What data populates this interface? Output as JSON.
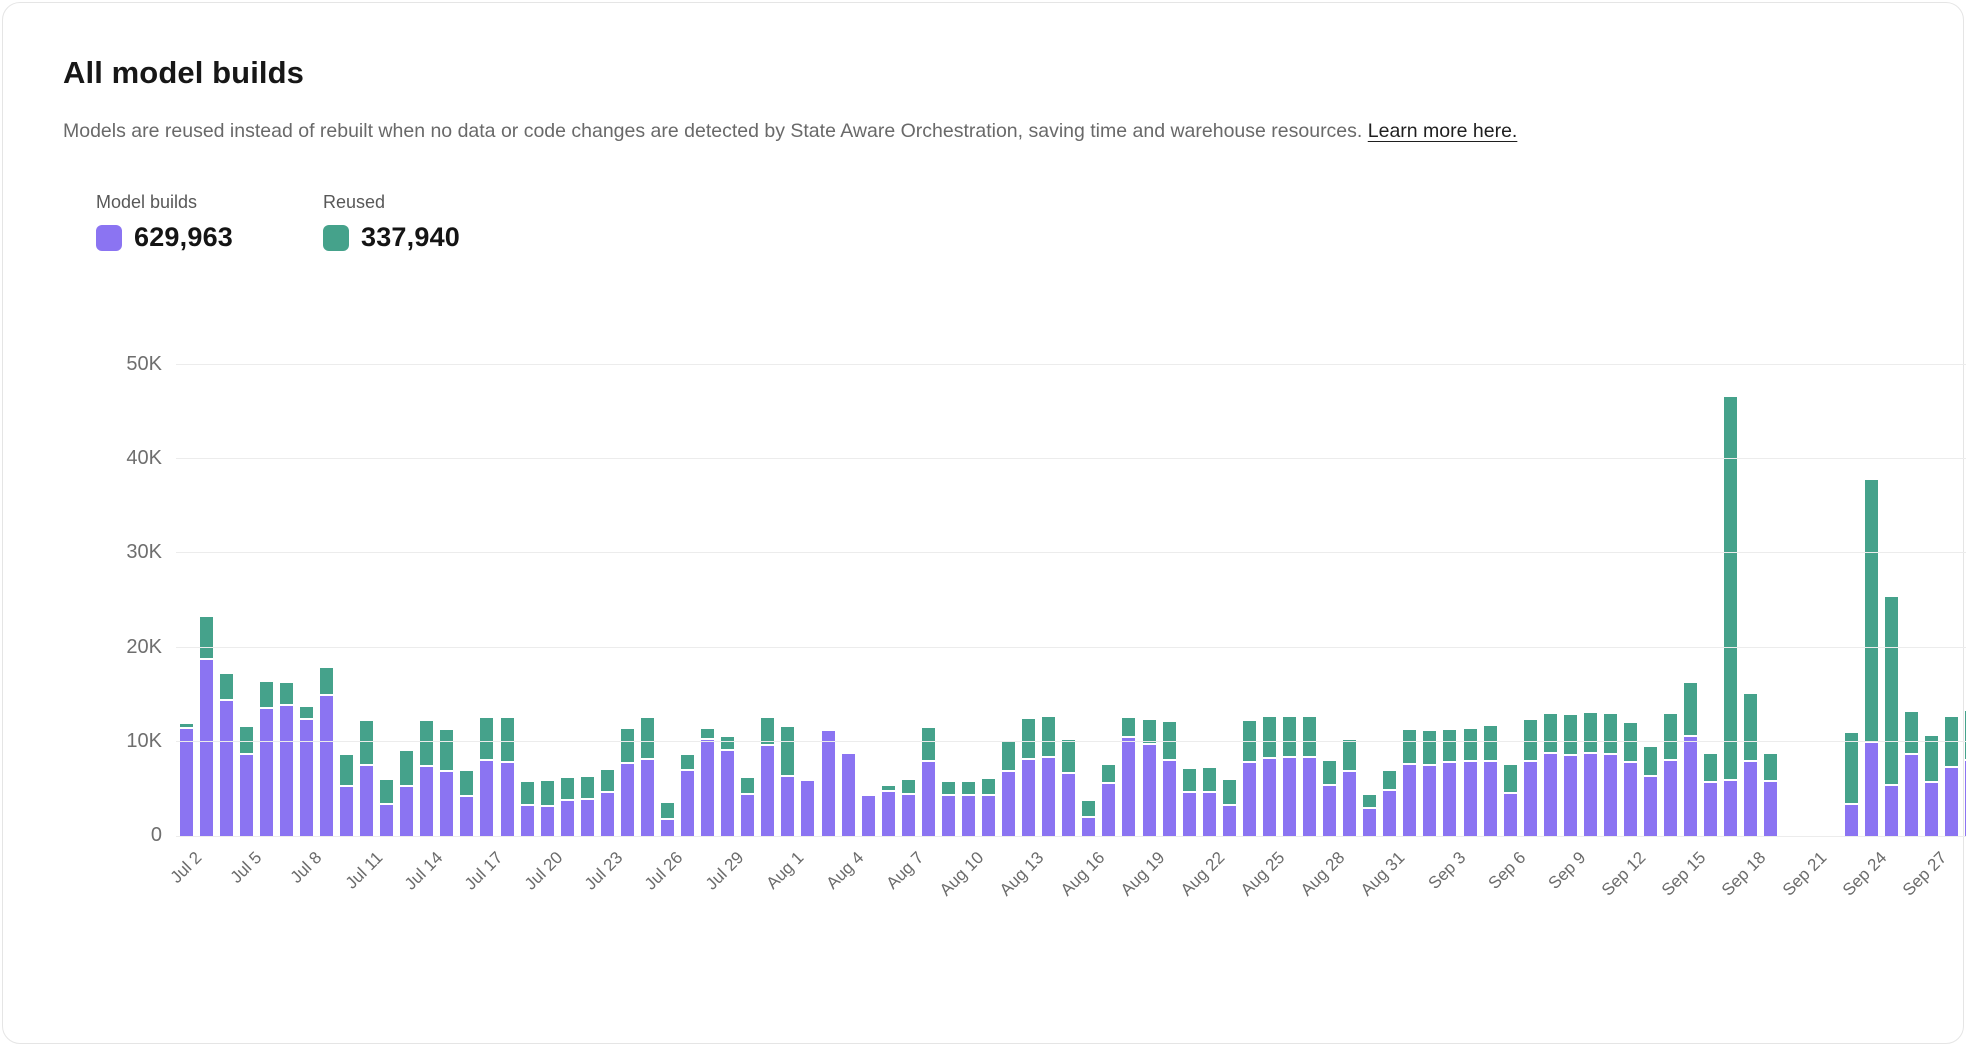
{
  "header": {
    "title": "All model builds",
    "subtitle_text": "Models are reused instead of rebuilt when no data or code changes are detected by State Aware Orchestration, saving time and warehouse resources. ",
    "subtitle_link": "Learn more here."
  },
  "legend": {
    "builds": {
      "label": "Model builds",
      "value": "629,963",
      "color": "#8b74f2"
    },
    "reused": {
      "label": "Reused",
      "value": "337,940",
      "color": "#45a28b"
    }
  },
  "chart_data": {
    "type": "bar",
    "stacked": true,
    "title": "All model builds",
    "xlabel": "",
    "ylabel": "",
    "ylim": [
      0,
      50000
    ],
    "ytick_labels": [
      "0",
      "10K",
      "20K",
      "30K",
      "40K",
      "50K"
    ],
    "ytick_values": [
      0,
      10000,
      20000,
      30000,
      40000,
      50000
    ],
    "xtick_every": 3,
    "grid": true,
    "legend_position": "top-left",
    "categories": [
      "Jul 2",
      "Jul 3",
      "Jul 4",
      "Jul 5",
      "Jul 6",
      "Jul 7",
      "Jul 8",
      "Jul 9",
      "Jul 10",
      "Jul 11",
      "Jul 12",
      "Jul 13",
      "Jul 14",
      "Jul 15",
      "Jul 16",
      "Jul 17",
      "Jul 18",
      "Jul 19",
      "Jul 20",
      "Jul 21",
      "Jul 22",
      "Jul 23",
      "Jul 24",
      "Jul 25",
      "Jul 26",
      "Jul 27",
      "Jul 28",
      "Jul 29",
      "Jul 30",
      "Jul 31",
      "Aug 1",
      "Aug 2",
      "Aug 3",
      "Aug 4",
      "Aug 5",
      "Aug 6",
      "Aug 7",
      "Aug 8",
      "Aug 9",
      "Aug 10",
      "Aug 11",
      "Aug 12",
      "Aug 13",
      "Aug 14",
      "Aug 15",
      "Aug 16",
      "Aug 17",
      "Aug 18",
      "Aug 19",
      "Aug 20",
      "Aug 21",
      "Aug 22",
      "Aug 23",
      "Aug 24",
      "Aug 25",
      "Aug 26",
      "Aug 27",
      "Aug 28",
      "Aug 29",
      "Aug 30",
      "Aug 31",
      "Sep 1",
      "Sep 2",
      "Sep 3",
      "Sep 4",
      "Sep 5",
      "Sep 6",
      "Sep 7",
      "Sep 8",
      "Sep 9",
      "Sep 10",
      "Sep 11",
      "Sep 12",
      "Sep 13",
      "Sep 14",
      "Sep 15",
      "Sep 16",
      "Sep 17",
      "Sep 18",
      "Sep 19",
      "Sep 20",
      "Sep 21",
      "Sep 22",
      "Sep 23",
      "Sep 24",
      "Sep 25",
      "Sep 26",
      "Sep 27",
      "Sep 28",
      "Sep 29"
    ],
    "series": [
      {
        "name": "Model builds",
        "color": "#8b74f2",
        "total": 629963,
        "values": [
          11400,
          18700,
          14300,
          8600,
          13500,
          13800,
          12300,
          14900,
          5200,
          7400,
          3300,
          5200,
          7300,
          6800,
          4100,
          8000,
          7800,
          3200,
          3100,
          3700,
          3800,
          4600,
          7600,
          8100,
          1700,
          6900,
          10200,
          9000,
          4400,
          9600,
          6300,
          5800,
          11100,
          8700,
          4200,
          4700,
          4400,
          7900,
          4200,
          4200,
          4200,
          6800,
          8100,
          8300,
          6600,
          1900,
          5500,
          10400,
          9700,
          8000,
          4600,
          4600,
          3200,
          7800,
          8200,
          8300,
          8300,
          5300,
          6800,
          2900,
          4800,
          7500,
          7400,
          7700,
          7900,
          7900,
          4500,
          7900,
          8700,
          8500,
          8700,
          8600,
          7800,
          6300,
          8000,
          10500,
          5600,
          5800,
          7900,
          5700,
          0,
          0,
          0,
          3300,
          9900,
          5300,
          8600,
          5600,
          7200,
          8000
        ]
      },
      {
        "name": "Reused",
        "color": "#45a28b",
        "total": 337940,
        "values": [
          300,
          4300,
          2700,
          2800,
          2600,
          2200,
          1200,
          2700,
          3200,
          4600,
          2400,
          3600,
          4700,
          4200,
          2600,
          4300,
          4500,
          2300,
          2500,
          2300,
          2300,
          2200,
          3500,
          4200,
          1600,
          1500,
          900,
          1300,
          1500,
          2700,
          5100,
          0,
          0,
          0,
          0,
          400,
          1300,
          3400,
          1300,
          1300,
          1600,
          3100,
          4100,
          4100,
          3400,
          1600,
          1800,
          1900,
          2400,
          3900,
          2300,
          2400,
          2500,
          4200,
          4200,
          4100,
          4100,
          2500,
          3200,
          1200,
          1900,
          3500,
          3500,
          3300,
          3300,
          3600,
          2800,
          4200,
          4000,
          4100,
          4100,
          4100,
          4000,
          2900,
          4700,
          5500,
          2900,
          40600,
          7000,
          2800,
          0,
          0,
          0,
          7400,
          27700,
          19900,
          4400,
          4800,
          5200,
          5100
        ]
      }
    ]
  }
}
